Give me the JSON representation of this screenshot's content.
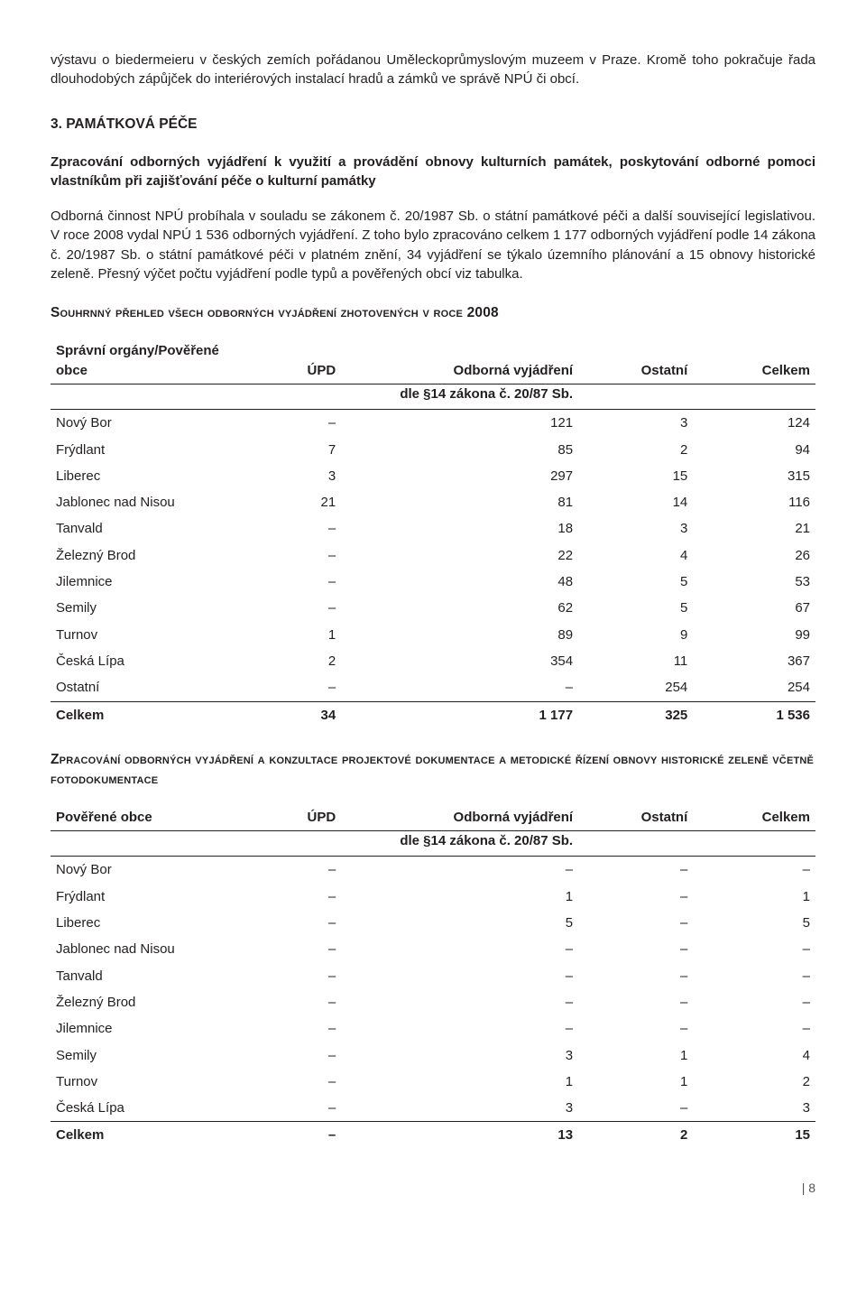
{
  "intro_paragraph": "výstavu o biedermeieru v českých zemích pořádanou Uměleckoprůmyslovým muzeem v Praze. Kromě toho pokračuje řada dlouhodobých zápůjček do interiérových instalací hradů a zámků ve správě NPÚ či obcí.",
  "section3_heading": "3. PAMÁTKOVÁ PÉČE",
  "section3_subheading": "Zpracování odborných vyjádření k využití a provádění obnovy kulturních památek, poskytování odborné pomoci vlastníkům při zajišťování péče o kulturní památky",
  "section3_para": "Odborná činnost NPÚ probíhala v souladu se zákonem č. 20/1987 Sb. o státní památkové péči a další související legislativou. V roce 2008 vydal NPÚ 1 536 odborných vyjádření. Z toho bylo zpracováno celkem 1 177 odborných vyjádření podle 14 zákona č. 20/1987 Sb. o státní památkové péči v platném znění, 34 vyjádření se týkalo územního plánování a 15 obnovy historické zeleně. Přesný výčet počtu vyjádření podle typů a pověřených obcí viz tabulka.",
  "table1_caption": "Souhrnný přehled všech odborných vyjádření zhotovených v roce 2008",
  "table_headers": {
    "col1": "Správní orgány/Pověřené obce",
    "col1b": "Pověřené obce",
    "col2": "ÚPD",
    "col3": "Odborná vyjádření",
    "col3b": "dle §14 zákona č. 20/87 Sb.",
    "col4": "Ostatní",
    "col5": "Celkem"
  },
  "table1_rows": [
    {
      "name": "Nový Bor",
      "upd": "–",
      "ov": "121",
      "ost": "3",
      "cel": "124"
    },
    {
      "name": "Frýdlant",
      "upd": "7",
      "ov": "85",
      "ost": "2",
      "cel": "94"
    },
    {
      "name": "Liberec",
      "upd": "3",
      "ov": "297",
      "ost": "15",
      "cel": "315"
    },
    {
      "name": "Jablonec nad Nisou",
      "upd": "21",
      "ov": "81",
      "ost": "14",
      "cel": "116"
    },
    {
      "name": "Tanvald",
      "upd": "–",
      "ov": "18",
      "ost": "3",
      "cel": "21"
    },
    {
      "name": "Železný Brod",
      "upd": "–",
      "ov": "22",
      "ost": "4",
      "cel": "26"
    },
    {
      "name": "Jilemnice",
      "upd": "–",
      "ov": "48",
      "ost": "5",
      "cel": "53"
    },
    {
      "name": "Semily",
      "upd": "–",
      "ov": "62",
      "ost": "5",
      "cel": "67"
    },
    {
      "name": "Turnov",
      "upd": "1",
      "ov": "89",
      "ost": "9",
      "cel": "99"
    },
    {
      "name": "Česká Lípa",
      "upd": "2",
      "ov": "354",
      "ost": "11",
      "cel": "367"
    },
    {
      "name": "Ostatní",
      "upd": "–",
      "ov": "–",
      "ost": "254",
      "cel": "254"
    }
  ],
  "table1_total": {
    "name": "Celkem",
    "upd": "34",
    "ov": "1 177",
    "ost": "325",
    "cel": "1 536"
  },
  "table2_caption": "Zpracování odborných vyjádření a konzultace projektové dokumentace a metodické řízení obnovy historické zeleně včetně fotodokumentace",
  "table2_rows": [
    {
      "name": "Nový Bor",
      "upd": "–",
      "ov": "–",
      "ost": "–",
      "cel": "–"
    },
    {
      "name": "Frýdlant",
      "upd": "–",
      "ov": "1",
      "ost": "–",
      "cel": "1"
    },
    {
      "name": "Liberec",
      "upd": "–",
      "ov": "5",
      "ost": "–",
      "cel": "5"
    },
    {
      "name": "Jablonec nad Nisou",
      "upd": "–",
      "ov": "–",
      "ost": "–",
      "cel": "–"
    },
    {
      "name": "Tanvald",
      "upd": "–",
      "ov": "–",
      "ost": "–",
      "cel": "–"
    },
    {
      "name": "Železný Brod",
      "upd": "–",
      "ov": "–",
      "ost": "–",
      "cel": "–"
    },
    {
      "name": "Jilemnice",
      "upd": "–",
      "ov": "–",
      "ost": "–",
      "cel": "–"
    },
    {
      "name": "Semily",
      "upd": "–",
      "ov": "3",
      "ost": "1",
      "cel": "4"
    },
    {
      "name": "Turnov",
      "upd": "–",
      "ov": "1",
      "ost": "1",
      "cel": "2"
    },
    {
      "name": "Česká Lípa",
      "upd": "–",
      "ov": "3",
      "ost": "–",
      "cel": "3"
    }
  ],
  "table2_total": {
    "name": "Celkem",
    "upd": "–",
    "ov": "13",
    "ost": "2",
    "cel": "15"
  },
  "page_num": "| 8"
}
